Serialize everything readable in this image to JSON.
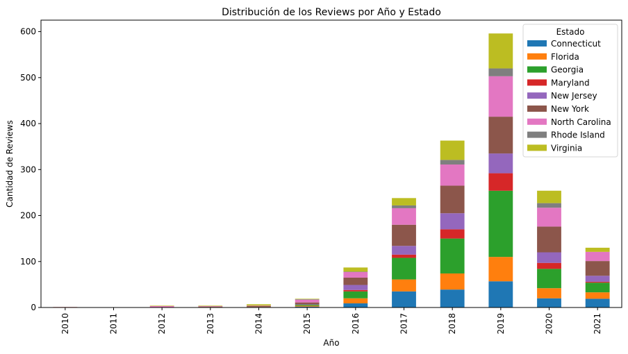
{
  "chart_data": {
    "type": "bar",
    "stacked": true,
    "title": "Distribución de los Reviews por Año y Estado",
    "xlabel": "Año",
    "ylabel": "Cantidad de Reviews",
    "ylim": [
      0,
      625
    ],
    "yticks": [
      0,
      100,
      200,
      300,
      400,
      500,
      600
    ],
    "categories": [
      "2010",
      "2011",
      "2012",
      "2013",
      "2014",
      "2015",
      "2016",
      "2017",
      "2018",
      "2019",
      "2020",
      "2021"
    ],
    "legend": {
      "title": "Estado",
      "placement": "top-right"
    },
    "grid": false,
    "series": [
      {
        "name": "Connecticut",
        "color": "#1f77b4",
        "values": [
          0,
          0,
          0,
          0,
          0,
          2,
          9,
          35,
          39,
          57,
          20,
          19
        ]
      },
      {
        "name": "Florida",
        "color": "#ff7f0e",
        "values": [
          0,
          0,
          0,
          1,
          1,
          2,
          11,
          26,
          35,
          53,
          22,
          14
        ]
      },
      {
        "name": "Georgia",
        "color": "#2ca02c",
        "values": [
          0,
          0,
          0,
          0,
          0,
          2,
          15,
          47,
          76,
          144,
          42,
          21
        ]
      },
      {
        "name": "Maryland",
        "color": "#d62728",
        "values": [
          1,
          0,
          0,
          0,
          0,
          0,
          3,
          7,
          20,
          38,
          13,
          2
        ]
      },
      {
        "name": "New Jersey",
        "color": "#9467bd",
        "values": [
          0,
          0,
          0,
          0,
          0,
          1,
          11,
          19,
          35,
          43,
          23,
          13
        ]
      },
      {
        "name": "New York",
        "color": "#8c564b",
        "values": [
          0,
          0,
          0,
          1,
          2,
          4,
          16,
          46,
          60,
          80,
          56,
          32
        ]
      },
      {
        "name": "North Carolina",
        "color": "#e377c2",
        "values": [
          0,
          0,
          3,
          1,
          1,
          6,
          12,
          36,
          46,
          88,
          41,
          20
        ]
      },
      {
        "name": "Rhode Island",
        "color": "#7f7f7f",
        "values": [
          0,
          0,
          0,
          0,
          0,
          1,
          1,
          6,
          10,
          17,
          10,
          0
        ]
      },
      {
        "name": "Virginia",
        "color": "#bcbd22",
        "values": [
          0,
          0,
          1,
          1,
          3,
          1,
          9,
          16,
          42,
          76,
          27,
          9
        ]
      }
    ]
  }
}
